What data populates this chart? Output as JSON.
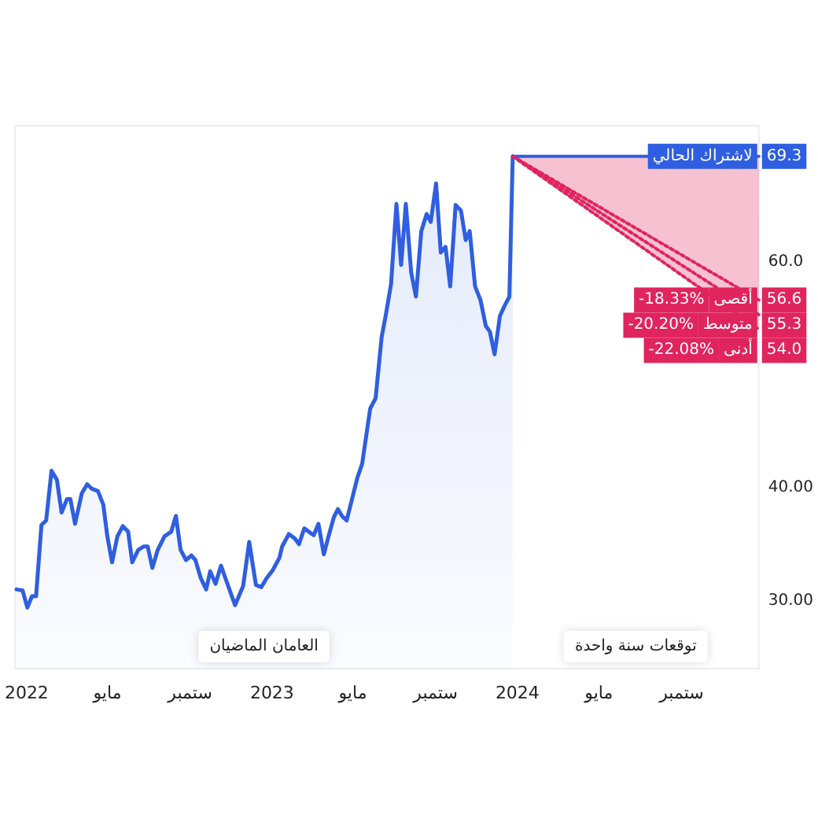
{
  "chart_data": {
    "type": "area",
    "xlim": [
      "2021-12-15",
      "2024-12-25"
    ],
    "ylim": [
      24,
      72
    ],
    "xticks": [
      {
        "value": "2022-01",
        "label": "2022"
      },
      {
        "value": "2022-05",
        "label": "مايو"
      },
      {
        "value": "2022-09",
        "label": "ستمبر"
      },
      {
        "value": "2023-01",
        "label": "2023"
      },
      {
        "value": "2023-05",
        "label": "مايو"
      },
      {
        "value": "2023-09",
        "label": "ستمبر"
      },
      {
        "value": "2024-01",
        "label": "2024"
      },
      {
        "value": "2024-05",
        "label": "مايو"
      },
      {
        "value": "2024-09",
        "label": "ستمبر"
      }
    ],
    "yticks": [
      {
        "value": 30,
        "label": "30.00"
      },
      {
        "value": 40,
        "label": "40.00"
      },
      {
        "value": 60,
        "label": "60.0"
      }
    ],
    "grid": false,
    "legend": "right",
    "marker": "none",
    "annotations": [
      "العامان الماضيان",
      "توقعات سنة واحدة",
      "-18.33%",
      "-20.20%",
      "-22.08%"
    ],
    "series": [
      {
        "color": "#2f5fe0",
        "x": [
          "2021-12-17",
          "2021-12-26",
          "2022-01-02",
          "2022-01-09",
          "2022-01-15",
          "2022-01-23",
          "2022-01-30",
          "2022-02-07",
          "2022-02-15",
          "2022-02-22",
          "2022-03-02",
          "2022-03-07",
          "2022-03-14",
          "2022-03-24",
          "2022-04-01",
          "2022-04-08",
          "2022-04-17",
          "2022-04-25",
          "2022-05-01",
          "2022-05-08",
          "2022-05-16",
          "2022-05-24",
          "2022-06-01",
          "2022-06-07",
          "2022-06-16",
          "2022-06-24",
          "2022-06-30",
          "2022-07-07",
          "2022-07-15",
          "2022-07-25",
          "2022-08-04",
          "2022-08-11",
          "2022-08-18",
          "2022-08-26",
          "2022-09-03",
          "2022-09-09",
          "2022-09-17",
          "2022-09-25",
          "2022-10-01",
          "2022-10-09",
          "2022-10-17",
          "2022-10-26",
          "2022-11-07",
          "2022-11-19",
          "2022-11-28",
          "2022-12-08",
          "2022-12-16",
          "2022-12-24",
          "2023-01-02",
          "2023-01-12",
          "2023-01-16",
          "2023-01-26",
          "2023-02-04",
          "2023-02-10",
          "2023-02-18",
          "2023-02-27",
          "2023-03-04",
          "2023-03-11",
          "2023-03-19",
          "2023-03-26",
          "2023-04-03",
          "2023-04-09",
          "2023-04-15",
          "2023-04-22",
          "2023-04-30",
          "2023-05-08",
          "2023-05-15",
          "2023-05-27",
          "2023-06-04",
          "2023-06-13",
          "2023-06-19",
          "2023-06-27",
          "2023-07-05",
          "2023-07-12",
          "2023-07-19",
          "2023-07-27",
          "2023-08-03",
          "2023-08-11",
          "2023-08-19",
          "2023-08-25",
          "2023-09-02",
          "2023-09-09",
          "2023-09-16",
          "2023-09-23",
          "2023-10-01",
          "2023-10-09",
          "2023-10-16",
          "2023-10-22",
          "2023-10-30",
          "2023-11-07",
          "2023-11-15",
          "2023-11-21",
          "2023-11-28",
          "2023-12-06",
          "2023-12-13",
          "2023-12-20",
          "2023-12-25"
        ],
        "values": [
          31.0,
          30.9,
          29.4,
          30.4,
          30.4,
          36.7,
          37.1,
          41.5,
          40.7,
          37.8,
          39.0,
          39.0,
          36.8,
          39.5,
          40.3,
          39.9,
          39.7,
          38.5,
          35.7,
          33.4,
          35.7,
          36.6,
          36.1,
          33.4,
          34.5,
          34.8,
          34.8,
          32.9,
          34.5,
          35.7,
          36.1,
          37.5,
          34.5,
          33.6,
          34.0,
          33.6,
          32.0,
          31.0,
          32.6,
          31.5,
          33.1,
          31.6,
          29.6,
          31.3,
          35.2,
          31.4,
          31.2,
          32.0,
          32.7,
          33.8,
          34.8,
          35.9,
          35.5,
          35.0,
          36.4,
          36.0,
          35.8,
          36.8,
          34.1,
          35.7,
          37.4,
          38.1,
          37.5,
          37.1,
          39.0,
          40.9,
          42.1,
          47.0,
          47.9,
          53.3,
          55.2,
          58.0,
          65.1,
          59.7,
          65.1,
          59.0,
          56.9,
          62.7,
          64.2,
          63.5,
          66.9,
          60.8,
          61.3,
          57.8,
          65.0,
          64.5,
          61.9,
          62.7,
          57.8,
          56.6,
          54.3,
          53.8,
          51.8,
          55.2,
          56.1,
          56.9,
          69.3
        ]
      },
      {
        "type": "line",
        "name": "لاشتراك الحالي",
        "color": "#2f5fe0",
        "x": [
          "2023-12-25",
          "2024-12-25"
        ],
        "values": [
          69.3,
          69.3
        ],
        "value_labels": [
          null,
          "69.3"
        ]
      },
      {
        "type": "line",
        "name": "أقصى",
        "color": "#e0245e",
        "line_style": "dotted",
        "x": [
          "2023-12-25",
          "2024-12-25"
        ],
        "values": [
          69.3,
          56.6
        ],
        "value_labels": [
          null,
          "56.6"
        ]
      },
      {
        "type": "line",
        "name": "متوسط",
        "color": "#e0245e",
        "line_style": "dotted",
        "x": [
          "2023-12-25",
          "2024-12-25"
        ],
        "values": [
          69.3,
          55.3
        ],
        "value_labels": [
          null,
          "55.3"
        ],
        "lower": [
          69.3,
          54.0
        ],
        "upper": [
          69.3,
          69.3
        ]
      },
      {
        "type": "line",
        "name": "أدنى",
        "color": "#e0245e",
        "line_style": "dotted",
        "x": [
          "2023-12-25",
          "2024-12-25"
        ],
        "values": [
          69.3,
          54.0
        ],
        "value_labels": [
          null,
          "54.0"
        ]
      }
    ]
  }
}
